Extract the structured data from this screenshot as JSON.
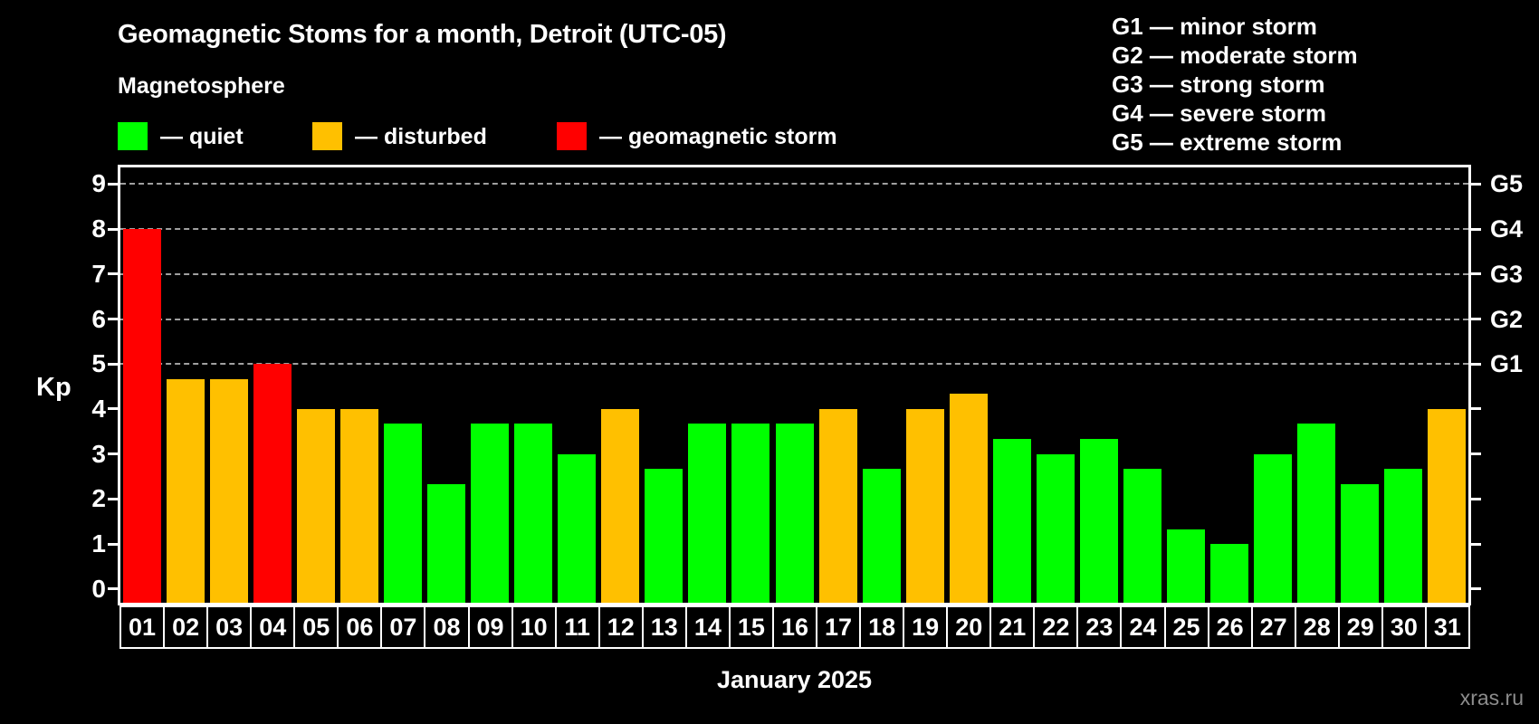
{
  "title": "Geomagnetic Stoms for a month, Detroit (UTC-05)",
  "subtitle": "Magnetosphere",
  "legend": {
    "items": [
      {
        "key": "quiet",
        "label": "— quiet",
        "color": "#00ff00"
      },
      {
        "key": "disturbed",
        "label": "— disturbed",
        "color": "#ffc000"
      },
      {
        "key": "storm",
        "label": "— geomagnetic storm",
        "color": "#ff0000"
      }
    ]
  },
  "g_legend": [
    "G1 — minor storm",
    "G2 — moderate storm",
    "G3 — strong storm",
    "G4 — severe storm",
    "G5 — extreme storm"
  ],
  "axis": {
    "ylabel": "Kp",
    "xlabel": "January 2025",
    "yticks": [
      0,
      1,
      2,
      3,
      4,
      5,
      6,
      7,
      8,
      9
    ]
  },
  "watermark": "xras.ru",
  "chart_data": {
    "type": "bar",
    "title": "Geomagnetic Stoms for a month, Detroit (UTC-05)",
    "xlabel": "January 2025",
    "ylabel": "Kp",
    "categories": [
      "01",
      "02",
      "03",
      "04",
      "05",
      "06",
      "07",
      "08",
      "09",
      "10",
      "11",
      "12",
      "13",
      "14",
      "15",
      "16",
      "17",
      "18",
      "19",
      "20",
      "21",
      "22",
      "23",
      "24",
      "25",
      "26",
      "27",
      "28",
      "29",
      "30",
      "31"
    ],
    "values": [
      8,
      4.67,
      4.67,
      5,
      4,
      4,
      3.67,
      2.33,
      3.67,
      3.67,
      3,
      4,
      2.67,
      3.67,
      3.67,
      3.67,
      4,
      2.67,
      4,
      4.33,
      3.33,
      3,
      3.33,
      2.67,
      1.33,
      1,
      3,
      3.67,
      2.33,
      2.67,
      4
    ],
    "statuses": [
      "storm",
      "disturbed",
      "disturbed",
      "storm",
      "disturbed",
      "disturbed",
      "quiet",
      "quiet",
      "quiet",
      "quiet",
      "quiet",
      "disturbed",
      "quiet",
      "quiet",
      "quiet",
      "quiet",
      "disturbed",
      "quiet",
      "disturbed",
      "disturbed",
      "quiet",
      "quiet",
      "quiet",
      "quiet",
      "quiet",
      "quiet",
      "quiet",
      "quiet",
      "quiet",
      "quiet",
      "disturbed"
    ],
    "status_colors": {
      "quiet": "#00ff00",
      "disturbed": "#ffc000",
      "storm": "#ff0000"
    },
    "thresholds": {
      "disturbed_min": 4,
      "storm_min": 5
    },
    "ylim": [
      -0.35,
      9.45
    ],
    "yticks": [
      0,
      1,
      2,
      3,
      4,
      5,
      6,
      7,
      8,
      9
    ],
    "gridlines": [
      5,
      6,
      7,
      8,
      9
    ],
    "gridline_style": "dashed",
    "right_axis_labels": [
      {
        "value": 5,
        "label": "G1"
      },
      {
        "value": 6,
        "label": "G2"
      },
      {
        "value": 7,
        "label": "G3"
      },
      {
        "value": 8,
        "label": "G4"
      },
      {
        "value": 9,
        "label": "G5"
      }
    ],
    "legend_position": "top"
  }
}
